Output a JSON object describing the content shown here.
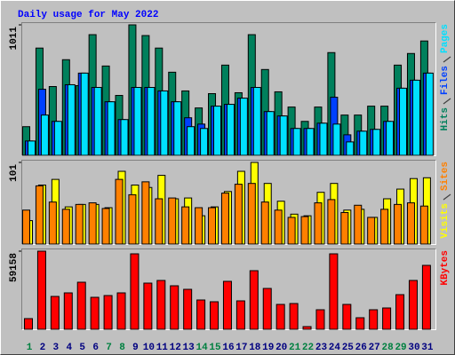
{
  "chart_data": {
    "type": "bar",
    "title": "Daily usage for May 2022",
    "categories": [
      "1",
      "2",
      "3",
      "4",
      "5",
      "6",
      "7",
      "8",
      "9",
      "10",
      "11",
      "12",
      "13",
      "14",
      "15",
      "16",
      "17",
      "18",
      "19",
      "20",
      "21",
      "22",
      "23",
      "24",
      "25",
      "26",
      "27",
      "28",
      "29",
      "30",
      "31"
    ],
    "category_colors": [
      "#008040",
      "#000080",
      "#000080",
      "#000080",
      "#000080",
      "#000080",
      "#008040",
      "#008040",
      "#000080",
      "#000080",
      "#000080",
      "#000080",
      "#000080",
      "#008040",
      "#008040",
      "#000080",
      "#000080",
      "#000080",
      "#000080",
      "#000080",
      "#008040",
      "#008040",
      "#000080",
      "#000080",
      "#000080",
      "#000080",
      "#000080",
      "#008040",
      "#008040",
      "#000080",
      "#000080"
    ],
    "panels": [
      {
        "ylim": [
          0,
          1011
        ],
        "yticks": [
          1011
        ],
        "series": [
          {
            "name": "Hits",
            "color": "#00805c",
            "values": [
              222,
              831,
              533,
              741,
              540,
              935,
              692,
              464,
              1011,
              928,
              831,
              644,
              499,
              367,
              478,
              699,
              485,
              935,
              665,
              492,
              374,
              263,
              374,
              796,
              312,
              312,
              381,
              381,
              699,
              789,
              886
            ]
          },
          {
            "name": "Files",
            "color": "#0040ff",
            "values": [
              111,
              512,
              263,
              547,
              637,
              526,
              415,
              277,
              526,
              526,
              499,
              415,
              291,
              242,
              381,
              395,
              443,
              526,
              339,
              305,
              208,
              208,
              249,
              450,
              159,
              187,
              201,
              263,
              520,
              582,
              637
            ]
          },
          {
            "name": "Pages",
            "color": "#00e0ff",
            "values": [
              111,
              312,
              263,
              547,
              637,
              526,
              415,
              277,
              526,
              526,
              499,
              415,
              222,
              208,
              381,
              395,
              443,
              526,
              339,
              305,
              208,
              208,
              249,
              242,
              104,
              187,
              201,
              263,
              520,
              582,
              637
            ]
          }
        ]
      },
      {
        "ylim": [
          0,
          101
        ],
        "yticks": [
          101
        ],
        "series": [
          {
            "name": "Visits",
            "color": "#ffff00",
            "values": [
              29,
              73,
              80,
              46,
              49,
              49,
              45,
              90,
              73,
              70,
              85,
              56,
              57,
              35,
              46,
              65,
              90,
              101,
              75,
              53,
              37,
              35,
              64,
              75,
              42,
              43,
              33,
              56,
              68,
              81,
              82
            ]
          },
          {
            "name": "Sites",
            "color": "#ff8000",
            "values": [
              42,
              72,
              52,
              43,
              49,
              51,
              44,
              80,
              61,
              77,
              56,
              57,
              46,
              45,
              45,
              63,
              74,
              75,
              52,
              42,
              33,
              34,
              51,
              55,
              39,
              48,
              33,
              43,
              49,
              51,
              47
            ]
          }
        ]
      },
      {
        "ylim": [
          0,
          59158
        ],
        "yticks": [
          59158
        ],
        "series": [
          {
            "name": "KBytes",
            "color": "#ff0000",
            "values": [
              8067,
              59158,
              24873,
              27562,
              35630,
              24201,
              25546,
              27562,
              57141,
              34957,
              36973,
              32940,
              30251,
              22184,
              20839,
              36301,
              21512,
              44370,
              30923,
              18823,
              19495,
              2017,
              14790,
              57141,
              18823,
              8739,
              14790,
              16134,
              26218,
              36973,
              48403
            ]
          }
        ]
      }
    ]
  }
}
